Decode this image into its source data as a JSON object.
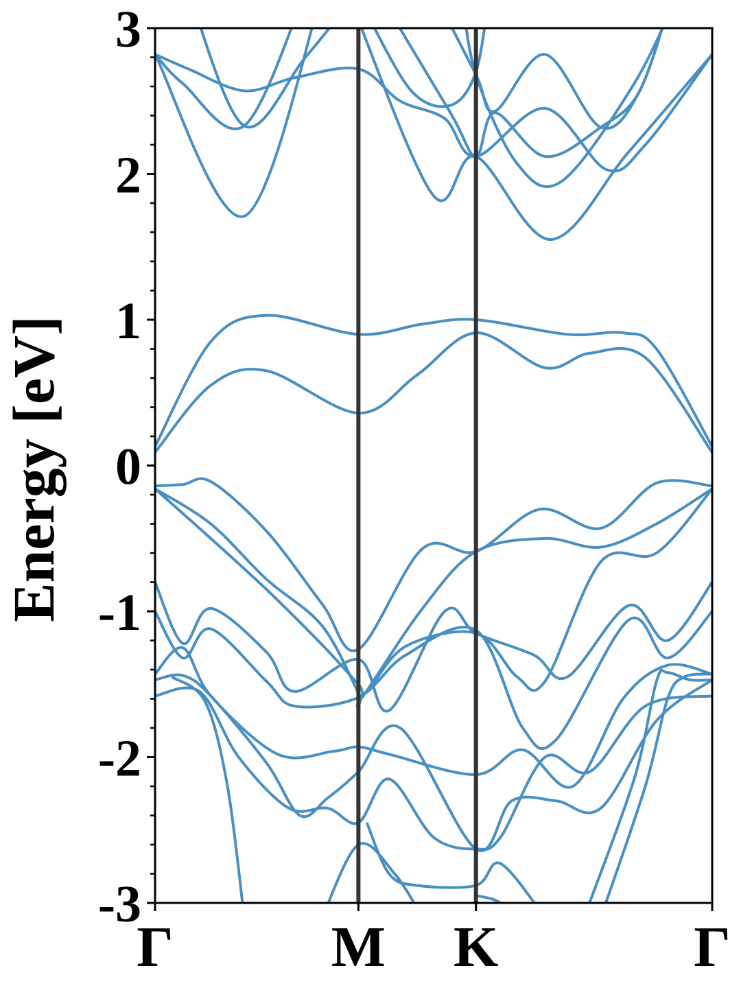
{
  "chart_data": {
    "type": "line",
    "ylabel": "Energy [eV]",
    "ylim": [
      -3,
      3
    ],
    "yticks": [
      -3,
      -2,
      -1,
      0,
      1,
      2,
      3
    ],
    "ytick_labels": [
      "-3",
      "-2",
      "-1",
      "0",
      "1",
      "2",
      "3"
    ],
    "xlim": [
      0,
      1
    ],
    "xticks": [
      0,
      0.365,
      0.576,
      1
    ],
    "xtick_labels": [
      "Γ",
      "M",
      "K",
      "Γ"
    ],
    "vlines": [
      0.365,
      0.576
    ],
    "line_color": "#4a8fc1",
    "vline_color": "#333333",
    "series": [
      {
        "values": [
          [
            0,
            2.82
          ],
          [
            0.06,
            2.72
          ],
          [
            0.16,
            2.57
          ],
          [
            0.25,
            2.66
          ],
          [
            0.365,
            2.72
          ],
          [
            0.44,
            2.5
          ],
          [
            0.52,
            2.38
          ],
          [
            0.576,
            2.12
          ],
          [
            0.7,
            2.45
          ],
          [
            0.81,
            2.03
          ],
          [
            0.88,
            2.2
          ],
          [
            1,
            2.82
          ]
        ]
      },
      {
        "values": [
          [
            0,
            2.82
          ],
          [
            0.05,
            2.62
          ],
          [
            0.16,
            2.33
          ],
          [
            0.27,
            3.25
          ]
        ]
      },
      {
        "values": [
          [
            0,
            2.82
          ],
          [
            0.16,
            1.71
          ],
          [
            0.3,
            3.25
          ]
        ]
      },
      {
        "values": [
          [
            0.06,
            3.25
          ],
          [
            0.16,
            2.33
          ],
          [
            0.27,
            2.8
          ],
          [
            0.365,
            3.25
          ]
        ]
      },
      {
        "values": [
          [
            0.36,
            3.1
          ],
          [
            0.5,
            1.85
          ],
          [
            0.576,
            2.12
          ],
          [
            0.71,
            1.55
          ],
          [
            0.85,
            2.15
          ],
          [
            1,
            2.82
          ]
        ]
      },
      {
        "values": [
          [
            0.38,
            3.1
          ],
          [
            0.46,
            2.57
          ],
          [
            0.53,
            2.47
          ],
          [
            0.576,
            2.7
          ],
          [
            0.6,
            3.25
          ]
        ]
      },
      {
        "values": [
          [
            0.4,
            3.25
          ],
          [
            0.53,
            2.42
          ],
          [
            0.576,
            2.12
          ],
          [
            0.61,
            2.42
          ],
          [
            0.7,
            2.12
          ],
          [
            0.8,
            2.32
          ],
          [
            0.87,
            2.57
          ],
          [
            0.93,
            3.25
          ]
        ]
      },
      {
        "values": [
          [
            0.5,
            3.25
          ],
          [
            0.576,
            2.68
          ],
          [
            0.61,
            2.43
          ],
          [
            0.7,
            2.82
          ],
          [
            0.8,
            2.32
          ],
          [
            0.87,
            2.57
          ],
          [
            0.93,
            3.25
          ]
        ]
      },
      {
        "values": [
          [
            0.55,
            3.25
          ],
          [
            0.576,
            2.68
          ],
          [
            0.65,
            2.07
          ],
          [
            0.73,
            1.95
          ],
          [
            0.86,
            2.62
          ],
          [
            0.94,
            3.25
          ]
        ]
      },
      {
        "values": [
          [
            0,
            0.13
          ],
          [
            0.1,
            0.85
          ],
          [
            0.2,
            1.03
          ],
          [
            0.365,
            0.9
          ],
          [
            0.48,
            0.97
          ],
          [
            0.576,
            1.0
          ],
          [
            0.74,
            0.9
          ],
          [
            0.84,
            0.91
          ],
          [
            0.9,
            0.8
          ],
          [
            1,
            0.13
          ]
        ]
      },
      {
        "values": [
          [
            0,
            0.09
          ],
          [
            0.1,
            0.55
          ],
          [
            0.2,
            0.65
          ],
          [
            0.365,
            0.36
          ],
          [
            0.47,
            0.62
          ],
          [
            0.576,
            0.91
          ],
          [
            0.7,
            0.67
          ],
          [
            0.78,
            0.77
          ],
          [
            0.88,
            0.74
          ],
          [
            1,
            0.09
          ]
        ]
      },
      {
        "values": [
          [
            0,
            -0.14
          ],
          [
            0.05,
            -0.13
          ],
          [
            0.1,
            -0.11
          ],
          [
            0.2,
            -0.45
          ],
          [
            0.3,
            -0.95
          ],
          [
            0.365,
            -1.26
          ],
          [
            0.48,
            -0.57
          ],
          [
            0.576,
            -0.59
          ],
          [
            0.69,
            -0.3
          ],
          [
            0.8,
            -0.43
          ],
          [
            0.9,
            -0.12
          ],
          [
            1,
            -0.14
          ]
        ]
      },
      {
        "values": [
          [
            0,
            -0.16
          ],
          [
            0.1,
            -0.4
          ],
          [
            0.2,
            -0.78
          ],
          [
            0.3,
            -1.1
          ],
          [
            0.365,
            -1.56
          ],
          [
            0.37,
            -1.6
          ],
          [
            0.48,
            -0.98
          ],
          [
            0.576,
            -0.59
          ],
          [
            0.7,
            -0.5
          ],
          [
            0.8,
            -0.56
          ],
          [
            0.9,
            -0.4
          ],
          [
            1,
            -0.16
          ]
        ]
      },
      {
        "values": [
          [
            0,
            -0.16
          ],
          [
            0.1,
            -0.5
          ],
          [
            0.2,
            -0.85
          ],
          [
            0.3,
            -1.23
          ],
          [
            0.365,
            -1.5
          ],
          [
            0.38,
            -1.55
          ],
          [
            0.45,
            -1.24
          ],
          [
            0.576,
            -1.15
          ],
          [
            0.65,
            -1.45
          ],
          [
            0.7,
            -1.48
          ],
          [
            0.8,
            -0.66
          ],
          [
            0.9,
            -0.6
          ],
          [
            1,
            -0.16
          ]
        ]
      },
      {
        "values": [
          [
            0,
            -0.8
          ],
          [
            0.05,
            -1.22
          ],
          [
            0.1,
            -0.98
          ],
          [
            0.2,
            -1.28
          ],
          [
            0.25,
            -1.55
          ],
          [
            0.365,
            -1.33
          ],
          [
            0.42,
            -1.68
          ],
          [
            0.52,
            -1.0
          ],
          [
            0.576,
            -1.15
          ],
          [
            0.68,
            -1.3
          ],
          [
            0.74,
            -1.45
          ],
          [
            0.85,
            -0.96
          ],
          [
            0.92,
            -1.2
          ],
          [
            1,
            -0.8
          ]
        ]
      },
      {
        "values": [
          [
            0,
            -1.0
          ],
          [
            0.05,
            -1.32
          ],
          [
            0.1,
            -1.12
          ],
          [
            0.2,
            -1.48
          ],
          [
            0.25,
            -1.65
          ],
          [
            0.365,
            -1.59
          ],
          [
            0.45,
            -1.3
          ],
          [
            0.576,
            -1.13
          ],
          [
            0.66,
            -1.8
          ],
          [
            0.72,
            -1.88
          ],
          [
            0.85,
            -1.06
          ],
          [
            0.92,
            -1.32
          ],
          [
            1,
            -1.0
          ]
        ]
      },
      {
        "values": [
          [
            0,
            -1.43
          ],
          [
            0.05,
            -1.25
          ],
          [
            0.1,
            -1.58
          ],
          [
            0.22,
            -1.98
          ],
          [
            0.32,
            -1.96
          ],
          [
            0.365,
            -1.93
          ],
          [
            0.42,
            -1.98
          ],
          [
            0.576,
            -2.12
          ],
          [
            0.66,
            -1.95
          ],
          [
            0.75,
            -2.2
          ],
          [
            0.84,
            -1.6
          ],
          [
            0.92,
            -1.37
          ],
          [
            1,
            -1.43
          ]
        ]
      },
      {
        "values": [
          [
            0,
            -1.47
          ],
          [
            0.05,
            -1.44
          ],
          [
            0.1,
            -1.58
          ],
          [
            0.2,
            -2.04
          ],
          [
            0.26,
            -2.4
          ],
          [
            0.31,
            -2.28
          ],
          [
            0.365,
            -2.1
          ],
          [
            0.44,
            -1.8
          ],
          [
            0.576,
            -2.63
          ],
          [
            0.64,
            -2.3
          ],
          [
            0.72,
            -2.3
          ],
          [
            0.8,
            -2.35
          ],
          [
            0.9,
            -1.75
          ],
          [
            1,
            -1.47
          ]
        ]
      },
      {
        "values": [
          [
            0,
            -1.58
          ],
          [
            0.08,
            -1.55
          ],
          [
            0.15,
            -2.0
          ],
          [
            0.24,
            -2.35
          ],
          [
            0.31,
            -2.35
          ],
          [
            0.365,
            -2.45
          ],
          [
            0.42,
            -2.15
          ],
          [
            0.5,
            -2.55
          ],
          [
            0.576,
            -2.63
          ],
          [
            0.62,
            -2.55
          ],
          [
            0.7,
            -2.0
          ],
          [
            0.78,
            -2.1
          ],
          [
            0.88,
            -1.65
          ],
          [
            1,
            -1.58
          ]
        ]
      },
      {
        "values": [
          [
            0.03,
            -1.45
          ],
          [
            0.09,
            -1.62
          ],
          [
            0.13,
            -2.2
          ],
          [
            0.16,
            -3.1
          ]
        ]
      },
      {
        "values": [
          [
            0.3,
            -3.1
          ],
          [
            0.365,
            -2.6
          ],
          [
            0.43,
            -2.8
          ],
          [
            0.48,
            -3.1
          ]
        ]
      },
      {
        "values": [
          [
            0.38,
            -2.45
          ],
          [
            0.42,
            -2.8
          ],
          [
            0.47,
            -2.88
          ],
          [
            0.576,
            -2.88
          ],
          [
            0.62,
            -2.73
          ],
          [
            0.7,
            -3.1
          ]
        ]
      },
      {
        "values": [
          [
            0.576,
            -2.95
          ],
          [
            0.61,
            -2.98
          ],
          [
            0.64,
            -3.05
          ],
          [
            0.66,
            -3.1
          ]
        ]
      },
      {
        "values": [
          [
            0.77,
            -3.1
          ],
          [
            0.86,
            -2.15
          ],
          [
            0.9,
            -1.48
          ],
          [
            0.92,
            -1.42
          ],
          [
            0.96,
            -1.47
          ],
          [
            1,
            -1.47
          ]
        ]
      },
      {
        "values": [
          [
            0.8,
            -3.1
          ],
          [
            0.88,
            -2.2
          ],
          [
            0.92,
            -1.6
          ],
          [
            0.95,
            -1.45
          ],
          [
            1,
            -1.43
          ]
        ]
      }
    ]
  }
}
